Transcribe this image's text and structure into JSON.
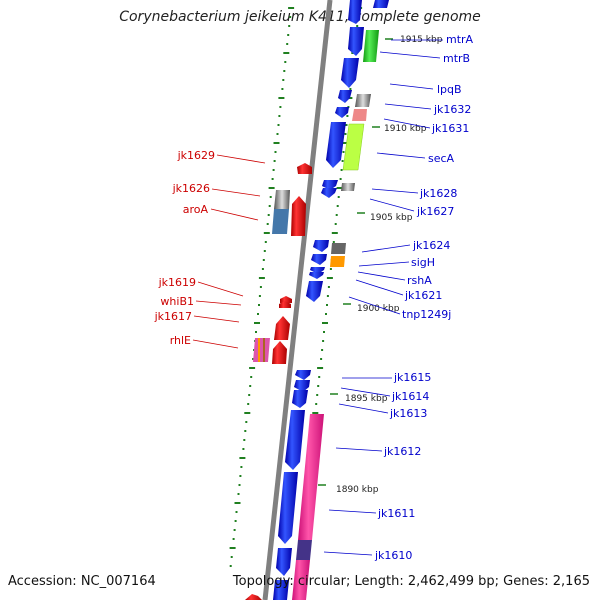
{
  "title": "Corynebacterium jeikeium K411, complete genome",
  "footer": {
    "accession": "Accession: NC_007164",
    "topology": "Topology: circular; Length: 2,462,499 bp; Genes: 2,165"
  },
  "colors": {
    "forward_gene": "#0000ee",
    "reverse_gene": "#ee0000",
    "right_label": "#0000cc",
    "left_label": "#cc0000",
    "backbone": "#808080",
    "tick": "#208020",
    "cog_green": "#33cc33",
    "cog_pink": "#ff3399"
  },
  "kbp_markers": [
    "1915 kbp",
    "1910 kbp",
    "1905 kbp",
    "1900 kbp",
    "1895 kbp",
    "1890 kbp"
  ],
  "right_genes": [
    "mtrA",
    "mtrB",
    "lpqB",
    "jk1632",
    "jk1631",
    "secA",
    "jk1628",
    "jk1627",
    "jk1624",
    "sigH",
    "rshA",
    "jk1621",
    "tnp1249j",
    "jk1615",
    "jk1614",
    "jk1613",
    "jk1612",
    "jk1611",
    "jk1610"
  ],
  "left_genes": [
    "jk1629",
    "jk1626",
    "aroA",
    "jk1619",
    "whiB1",
    "jk1617",
    "rhlE"
  ]
}
